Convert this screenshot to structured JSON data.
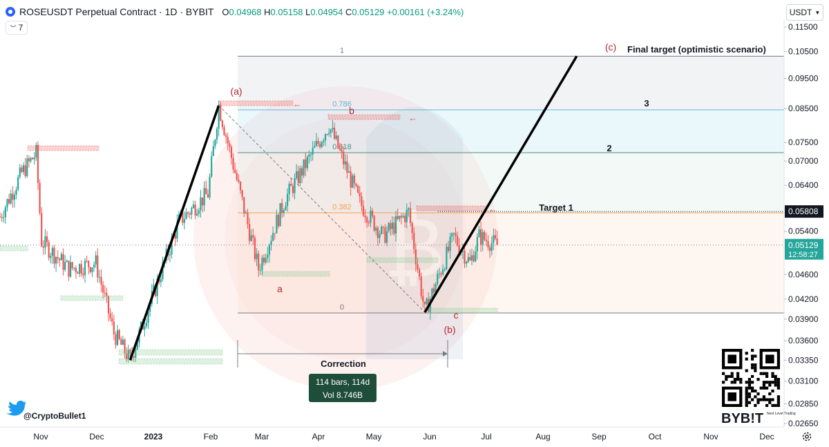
{
  "header": {
    "title": "ROSEUSDT Perpetual Contract · 1D · BYBIT",
    "ohlc": [
      {
        "k": "O",
        "v": "0.04968"
      },
      {
        "k": "H",
        "v": "0.05158"
      },
      {
        "k": "L",
        "v": "0.04954"
      },
      {
        "k": "C",
        "v": "0.05129"
      }
    ],
    "change": "+0.00161 (+3.24%)"
  },
  "collapse_count": "7",
  "currency_button": "USDT",
  "price_axis": {
    "ticks": [
      "0.11500",
      "0.10500",
      "0.09500",
      "0.08500",
      "0.07500",
      "0.07000",
      "0.06400",
      "0.05400",
      "0.04600",
      "0.04200",
      "0.03900",
      "0.03600",
      "0.03350",
      "0.03100",
      "0.02850",
      "0.02650"
    ],
    "tick_values": [
      0.115,
      0.105,
      0.095,
      0.085,
      0.075,
      0.07,
      0.064,
      0.054,
      0.046,
      0.042,
      0.039,
      0.036,
      0.0335,
      0.031,
      0.0285,
      0.0265
    ],
    "scale": "log",
    "labels": [
      {
        "text": "0.05808",
        "value": 0.05808,
        "style": "dark"
      },
      {
        "text": "0.05129",
        "value": 0.05129,
        "style": "green"
      },
      {
        "text": "12:58:27",
        "value": 0.05129,
        "style": "green-countdown"
      }
    ]
  },
  "time_axis": {
    "labels": [
      "Nov",
      "Dec",
      "2023",
      "Feb",
      "Mar",
      "Apr",
      "May",
      "Jun",
      "Jul",
      "Aug",
      "Sep",
      "Oct",
      "Nov",
      "Dec"
    ],
    "bold": "2023"
  },
  "fib_levels": [
    {
      "label": "1",
      "value": 0.1032
    },
    {
      "label": "0.786",
      "value": 0.0846
    },
    {
      "label": "0.618",
      "value": 0.0722
    },
    {
      "label": "0.382",
      "value": 0.0578
    },
    {
      "label": "0",
      "value": 0.0399
    }
  ],
  "annotations": {
    "wave_a_big": "(a)",
    "wave_b_big": "(b)",
    "wave_c_big": "(c)",
    "wave_a_small": "a",
    "wave_b_small": "b",
    "wave_c_small": "c",
    "final_target": "Final target (optimistic scenario)",
    "target_3": "3",
    "target_2": "2",
    "target_1": "Target 1",
    "correction": "Correction",
    "measure_bars": "114 bars, 114d",
    "measure_vol": "Vol 8.746B",
    "twitter_handle": "@CryptoBullet1",
    "exchange_logo": "BYB!T",
    "exchange_tagline": "Next Level Trading"
  },
  "chart_data": {
    "type": "candlestick",
    "title": "ROSEUSDT Perpetual Contract · 1D · BYBIT",
    "y_scale": "log",
    "ylim": [
      0.0258,
      0.1175
    ],
    "x_range": [
      "2022-10-18",
      "2023-12-20"
    ],
    "ohlc_last": {
      "open": 0.04968,
      "high": 0.05158,
      "low": 0.04954,
      "close": 0.05129
    },
    "approx_price_path": [
      {
        "date": "2022-10-18",
        "price": 0.057
      },
      {
        "date": "2022-10-30",
        "price": 0.067
      },
      {
        "date": "2022-11-07",
        "price": 0.072
      },
      {
        "date": "2022-11-10",
        "price": 0.052
      },
      {
        "date": "2022-11-25",
        "price": 0.047
      },
      {
        "date": "2022-12-10",
        "price": 0.048
      },
      {
        "date": "2022-12-20",
        "price": 0.037
      },
      {
        "date": "2022-12-29",
        "price": 0.0335
      },
      {
        "date": "2023-01-25",
        "price": 0.056
      },
      {
        "date": "2023-02-10",
        "price": 0.062
      },
      {
        "date": "2023-02-16",
        "price": 0.086
      },
      {
        "date": "2023-03-10",
        "price": 0.047
      },
      {
        "date": "2023-03-25",
        "price": 0.061
      },
      {
        "date": "2023-04-18",
        "price": 0.08
      },
      {
        "date": "2023-05-05",
        "price": 0.06
      },
      {
        "date": "2023-05-18",
        "price": 0.053
      },
      {
        "date": "2023-06-01",
        "price": 0.058
      },
      {
        "date": "2023-06-10",
        "price": 0.04
      },
      {
        "date": "2023-06-26",
        "price": 0.053
      },
      {
        "date": "2023-07-05",
        "price": 0.048
      },
      {
        "date": "2023-07-10",
        "price": 0.053
      },
      {
        "date": "2023-07-20",
        "price": 0.05129
      }
    ],
    "projection": {
      "from": {
        "date": "2023-06-10",
        "price": 0.04
      },
      "to": {
        "date": "2023-09-02",
        "price": 0.1032
      }
    }
  }
}
